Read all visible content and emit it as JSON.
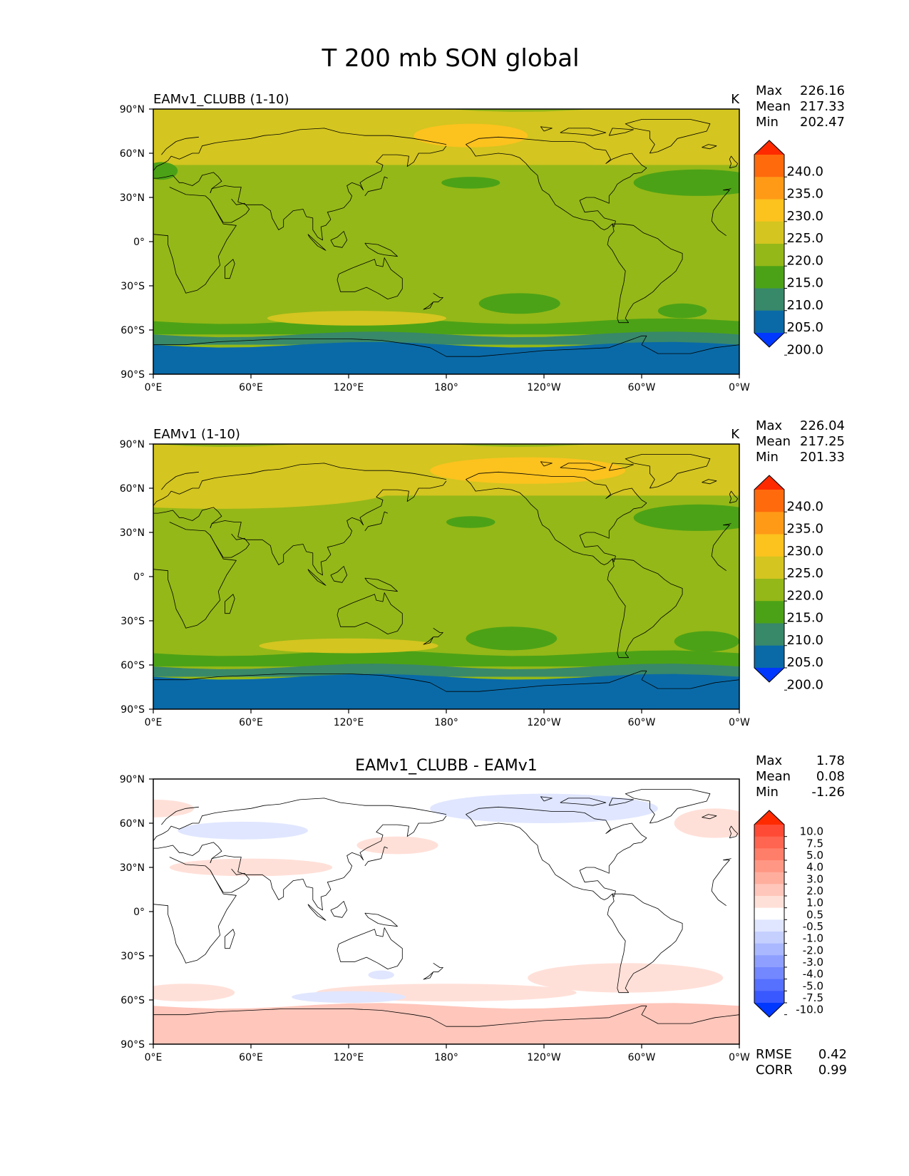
{
  "chart_data": {
    "type": "map",
    "title": "T 200 mb SON global",
    "x_ticks": [
      "0°E",
      "60°E",
      "120°E",
      "180°",
      "120°W",
      "60°W",
      "0°W"
    ],
    "y_ticks": [
      "90°N",
      "60°N",
      "30°N",
      "0°",
      "30°S",
      "60°S",
      "90°S"
    ],
    "panels": [
      {
        "id": "test",
        "title_left": "EAMv1_CLUBB (1-10)",
        "title_center": "",
        "units": "K",
        "stats": [
          {
            "label": "Max",
            "value": "226.16"
          },
          {
            "label": "Mean",
            "value": "217.33"
          },
          {
            "label": "Min",
            "value": "202.47"
          }
        ],
        "colorbar": {
          "levels": [
            "240.0",
            "235.0",
            "230.0",
            "225.0",
            "220.0",
            "215.0",
            "210.0",
            "205.0",
            "200.0"
          ],
          "colors": [
            "#ff2a00",
            "#ff6a0d",
            "#ff9a17",
            "#fcc21e",
            "#d4c520",
            "#94b818",
            "#4ca216",
            "#38886a",
            "#0a6aa7",
            "#0038ff"
          ]
        },
        "footer": []
      },
      {
        "id": "ref",
        "title_left": "EAMv1 (1-10)",
        "title_center": "",
        "units": "K",
        "stats": [
          {
            "label": "Max",
            "value": "226.04"
          },
          {
            "label": "Mean",
            "value": "217.25"
          },
          {
            "label": "Min",
            "value": "201.33"
          }
        ],
        "colorbar": {
          "levels": [
            "240.0",
            "235.0",
            "230.0",
            "225.0",
            "220.0",
            "215.0",
            "210.0",
            "205.0",
            "200.0"
          ],
          "colors": [
            "#ff2a00",
            "#ff6a0d",
            "#ff9a17",
            "#fcc21e",
            "#d4c520",
            "#94b818",
            "#4ca216",
            "#38886a",
            "#0a6aa7",
            "#0038ff"
          ]
        },
        "footer": []
      },
      {
        "id": "diff",
        "title_left": "",
        "title_center": "EAMv1_CLUBB - EAMv1",
        "units": "",
        "stats": [
          {
            "label": "Max",
            "value": "1.78"
          },
          {
            "label": "Mean",
            "value": "0.08"
          },
          {
            "label": "Min",
            "value": "-1.26"
          }
        ],
        "colorbar": {
          "levels": [
            "10.0",
            "7.5",
            "5.0",
            "4.0",
            "3.0",
            "2.0",
            "1.0",
            "0.5",
            "-0.5",
            "-1.0",
            "-2.0",
            "-3.0",
            "-4.0",
            "-5.0",
            "-7.5",
            "-10.0"
          ],
          "colors": [
            "#ff2a00",
            "#ff4a35",
            "#ff6550",
            "#ff7e6a",
            "#ff9784",
            "#ffae9e",
            "#ffc6bb",
            "#ffe0d8",
            "#ffffff",
            "#e0e6ff",
            "#c6d0ff",
            "#aab8ff",
            "#8e9fff",
            "#7388ff",
            "#5670ff",
            "#3a58ff",
            "#0038ff"
          ]
        },
        "footer": [
          {
            "label": "RMSE",
            "value": "0.42"
          },
          {
            "label": "CORR",
            "value": "0.99"
          }
        ]
      }
    ]
  }
}
